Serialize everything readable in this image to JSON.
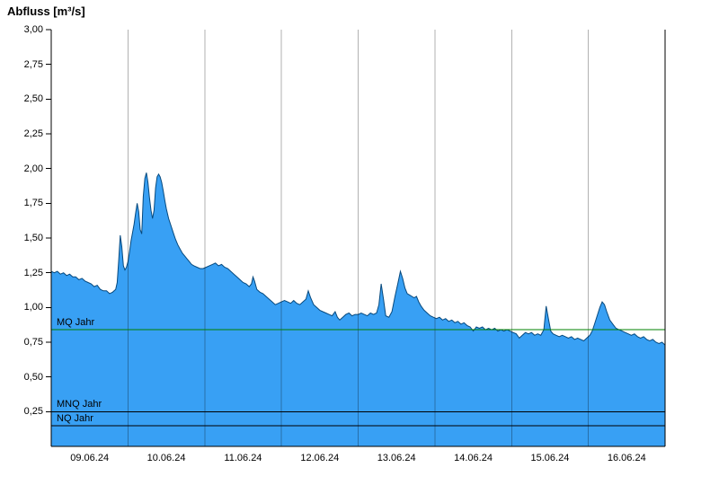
{
  "title": "Abfluss [m³/s]",
  "chart_data": {
    "type": "area",
    "title": "Abfluss [m³/s]",
    "ylabel": "Abfluss [m³/s]",
    "xlim": [
      0,
      8
    ],
    "ylim": [
      0,
      3
    ],
    "grid": "vertical-day-boundaries",
    "legend": "none",
    "x_ticks": [
      {
        "pos": 0.5,
        "label": "09.06.24"
      },
      {
        "pos": 1.5,
        "label": "10.06.24"
      },
      {
        "pos": 2.5,
        "label": "11.06.24"
      },
      {
        "pos": 3.5,
        "label": "12.06.24"
      },
      {
        "pos": 4.5,
        "label": "13.06.24"
      },
      {
        "pos": 5.5,
        "label": "14.06.24"
      },
      {
        "pos": 6.5,
        "label": "15.06.24"
      },
      {
        "pos": 7.5,
        "label": "16.06.24"
      }
    ],
    "y_ticks": [
      {
        "value": 0.25,
        "label": "0,25"
      },
      {
        "value": 0.5,
        "label": "0,50"
      },
      {
        "value": 0.75,
        "label": "0,75"
      },
      {
        "value": 1.0,
        "label": "1,00"
      },
      {
        "value": 1.25,
        "label": "1,25"
      },
      {
        "value": 1.5,
        "label": "1,50"
      },
      {
        "value": 1.75,
        "label": "1,75"
      },
      {
        "value": 2.0,
        "label": "2,00"
      },
      {
        "value": 2.25,
        "label": "2,25"
      },
      {
        "value": 2.5,
        "label": "2,50"
      },
      {
        "value": 2.75,
        "label": "2,75"
      },
      {
        "value": 3.0,
        "label": "3,00"
      }
    ],
    "reference_lines": [
      {
        "label": "MQ Jahr",
        "value": 0.84,
        "color": "#008000"
      },
      {
        "label": "MNQ Jahr",
        "value": 0.25,
        "color": "#000000"
      },
      {
        "label": "NQ Jahr",
        "value": 0.15,
        "color": "#000000"
      }
    ],
    "series": [
      {
        "name": "Abfluss",
        "unit": "m³/s",
        "fill": "#38a0f4",
        "stroke": "#06497e",
        "points": [
          [
            0.0,
            1.26
          ],
          [
            0.04,
            1.25
          ],
          [
            0.08,
            1.26
          ],
          [
            0.12,
            1.24
          ],
          [
            0.16,
            1.25
          ],
          [
            0.2,
            1.23
          ],
          [
            0.24,
            1.24
          ],
          [
            0.28,
            1.22
          ],
          [
            0.32,
            1.22
          ],
          [
            0.36,
            1.2
          ],
          [
            0.4,
            1.21
          ],
          [
            0.44,
            1.19
          ],
          [
            0.48,
            1.18
          ],
          [
            0.52,
            1.17
          ],
          [
            0.56,
            1.15
          ],
          [
            0.6,
            1.16
          ],
          [
            0.64,
            1.13
          ],
          [
            0.68,
            1.12
          ],
          [
            0.72,
            1.12
          ],
          [
            0.76,
            1.1
          ],
          [
            0.8,
            1.11
          ],
          [
            0.84,
            1.13
          ],
          [
            0.86,
            1.18
          ],
          [
            0.88,
            1.34
          ],
          [
            0.9,
            1.52
          ],
          [
            0.92,
            1.44
          ],
          [
            0.94,
            1.3
          ],
          [
            0.96,
            1.27
          ],
          [
            0.98,
            1.29
          ],
          [
            1.0,
            1.33
          ],
          [
            1.02,
            1.4
          ],
          [
            1.04,
            1.48
          ],
          [
            1.06,
            1.54
          ],
          [
            1.08,
            1.6
          ],
          [
            1.1,
            1.68
          ],
          [
            1.12,
            1.75
          ],
          [
            1.14,
            1.69
          ],
          [
            1.16,
            1.56
          ],
          [
            1.18,
            1.53
          ],
          [
            1.2,
            1.8
          ],
          [
            1.22,
            1.93
          ],
          [
            1.24,
            1.97
          ],
          [
            1.26,
            1.9
          ],
          [
            1.28,
            1.79
          ],
          [
            1.3,
            1.7
          ],
          [
            1.32,
            1.64
          ],
          [
            1.34,
            1.7
          ],
          [
            1.36,
            1.86
          ],
          [
            1.38,
            1.94
          ],
          [
            1.4,
            1.96
          ],
          [
            1.42,
            1.94
          ],
          [
            1.44,
            1.9
          ],
          [
            1.46,
            1.84
          ],
          [
            1.48,
            1.77
          ],
          [
            1.5,
            1.71
          ],
          [
            1.53,
            1.64
          ],
          [
            1.56,
            1.59
          ],
          [
            1.59,
            1.54
          ],
          [
            1.62,
            1.49
          ],
          [
            1.65,
            1.45
          ],
          [
            1.68,
            1.42
          ],
          [
            1.71,
            1.39
          ],
          [
            1.74,
            1.37
          ],
          [
            1.77,
            1.35
          ],
          [
            1.8,
            1.33
          ],
          [
            1.83,
            1.31
          ],
          [
            1.86,
            1.3
          ],
          [
            1.9,
            1.29
          ],
          [
            1.94,
            1.28
          ],
          [
            1.98,
            1.28
          ],
          [
            2.02,
            1.29
          ],
          [
            2.06,
            1.3
          ],
          [
            2.1,
            1.31
          ],
          [
            2.14,
            1.32
          ],
          [
            2.18,
            1.3
          ],
          [
            2.22,
            1.31
          ],
          [
            2.26,
            1.29
          ],
          [
            2.3,
            1.28
          ],
          [
            2.34,
            1.26
          ],
          [
            2.38,
            1.24
          ],
          [
            2.42,
            1.22
          ],
          [
            2.46,
            1.2
          ],
          [
            2.5,
            1.18
          ],
          [
            2.54,
            1.17
          ],
          [
            2.58,
            1.15
          ],
          [
            2.61,
            1.17
          ],
          [
            2.63,
            1.22
          ],
          [
            2.65,
            1.19
          ],
          [
            2.68,
            1.13
          ],
          [
            2.72,
            1.11
          ],
          [
            2.76,
            1.1
          ],
          [
            2.8,
            1.08
          ],
          [
            2.84,
            1.06
          ],
          [
            2.88,
            1.04
          ],
          [
            2.92,
            1.02
          ],
          [
            2.96,
            1.03
          ],
          [
            3.0,
            1.04
          ],
          [
            3.04,
            1.05
          ],
          [
            3.08,
            1.04
          ],
          [
            3.12,
            1.03
          ],
          [
            3.16,
            1.05
          ],
          [
            3.2,
            1.03
          ],
          [
            3.24,
            1.02
          ],
          [
            3.28,
            1.04
          ],
          [
            3.32,
            1.06
          ],
          [
            3.35,
            1.12
          ],
          [
            3.38,
            1.07
          ],
          [
            3.42,
            1.02
          ],
          [
            3.46,
            1.0
          ],
          [
            3.5,
            0.98
          ],
          [
            3.54,
            0.97
          ],
          [
            3.58,
            0.96
          ],
          [
            3.62,
            0.95
          ],
          [
            3.66,
            0.94
          ],
          [
            3.7,
            0.97
          ],
          [
            3.73,
            0.93
          ],
          [
            3.76,
            0.91
          ],
          [
            3.8,
            0.93
          ],
          [
            3.84,
            0.95
          ],
          [
            3.88,
            0.96
          ],
          [
            3.92,
            0.94
          ],
          [
            3.96,
            0.95
          ],
          [
            4.0,
            0.95
          ],
          [
            4.04,
            0.96
          ],
          [
            4.08,
            0.95
          ],
          [
            4.12,
            0.94
          ],
          [
            4.16,
            0.96
          ],
          [
            4.2,
            0.95
          ],
          [
            4.24,
            0.96
          ],
          [
            4.27,
            1.02
          ],
          [
            4.3,
            1.17
          ],
          [
            4.33,
            1.06
          ],
          [
            4.36,
            0.94
          ],
          [
            4.4,
            0.93
          ],
          [
            4.44,
            0.97
          ],
          [
            4.48,
            1.08
          ],
          [
            4.52,
            1.18
          ],
          [
            4.55,
            1.26
          ],
          [
            4.58,
            1.21
          ],
          [
            4.61,
            1.14
          ],
          [
            4.64,
            1.1
          ],
          [
            4.67,
            1.09
          ],
          [
            4.7,
            1.08
          ],
          [
            4.73,
            1.07
          ],
          [
            4.76,
            1.08
          ],
          [
            4.79,
            1.04
          ],
          [
            4.82,
            1.01
          ],
          [
            4.86,
            0.98
          ],
          [
            4.9,
            0.96
          ],
          [
            4.94,
            0.94
          ],
          [
            4.98,
            0.93
          ],
          [
            5.02,
            0.92
          ],
          [
            5.06,
            0.93
          ],
          [
            5.1,
            0.91
          ],
          [
            5.14,
            0.92
          ],
          [
            5.18,
            0.9
          ],
          [
            5.22,
            0.91
          ],
          [
            5.26,
            0.89
          ],
          [
            5.3,
            0.9
          ],
          [
            5.34,
            0.88
          ],
          [
            5.38,
            0.89
          ],
          [
            5.42,
            0.87
          ],
          [
            5.46,
            0.86
          ],
          [
            5.5,
            0.83
          ],
          [
            5.54,
            0.86
          ],
          [
            5.58,
            0.85
          ],
          [
            5.62,
            0.86
          ],
          [
            5.66,
            0.84
          ],
          [
            5.7,
            0.85
          ],
          [
            5.74,
            0.84
          ],
          [
            5.78,
            0.85
          ],
          [
            5.82,
            0.83
          ],
          [
            5.86,
            0.84
          ],
          [
            5.9,
            0.83
          ],
          [
            5.94,
            0.84
          ],
          [
            5.98,
            0.83
          ],
          [
            6.02,
            0.82
          ],
          [
            6.06,
            0.81
          ],
          [
            6.1,
            0.78
          ],
          [
            6.14,
            0.8
          ],
          [
            6.18,
            0.82
          ],
          [
            6.22,
            0.81
          ],
          [
            6.26,
            0.82
          ],
          [
            6.3,
            0.8
          ],
          [
            6.34,
            0.81
          ],
          [
            6.38,
            0.8
          ],
          [
            6.42,
            0.84
          ],
          [
            6.45,
            1.01
          ],
          [
            6.48,
            0.92
          ],
          [
            6.51,
            0.83
          ],
          [
            6.54,
            0.81
          ],
          [
            6.58,
            0.8
          ],
          [
            6.62,
            0.79
          ],
          [
            6.66,
            0.8
          ],
          [
            6.7,
            0.79
          ],
          [
            6.74,
            0.78
          ],
          [
            6.78,
            0.79
          ],
          [
            6.82,
            0.77
          ],
          [
            6.86,
            0.78
          ],
          [
            6.9,
            0.77
          ],
          [
            6.94,
            0.76
          ],
          [
            6.98,
            0.78
          ],
          [
            7.02,
            0.8
          ],
          [
            7.05,
            0.83
          ],
          [
            7.08,
            0.88
          ],
          [
            7.12,
            0.95
          ],
          [
            7.15,
            1.0
          ],
          [
            7.18,
            1.04
          ],
          [
            7.21,
            1.02
          ],
          [
            7.24,
            0.97
          ],
          [
            7.28,
            0.91
          ],
          [
            7.32,
            0.88
          ],
          [
            7.36,
            0.85
          ],
          [
            7.4,
            0.84
          ],
          [
            7.44,
            0.83
          ],
          [
            7.48,
            0.82
          ],
          [
            7.52,
            0.81
          ],
          [
            7.56,
            0.8
          ],
          [
            7.6,
            0.81
          ],
          [
            7.64,
            0.79
          ],
          [
            7.68,
            0.78
          ],
          [
            7.72,
            0.79
          ],
          [
            7.76,
            0.77
          ],
          [
            7.8,
            0.76
          ],
          [
            7.84,
            0.77
          ],
          [
            7.88,
            0.75
          ],
          [
            7.92,
            0.74
          ],
          [
            7.96,
            0.75
          ],
          [
            8.0,
            0.73
          ]
        ]
      }
    ],
    "colors": {
      "area_fill": "#38a0f4",
      "area_stroke": "#06497e",
      "gridline": "rgba(0,0,0,0.3)",
      "axis": "#000000",
      "mq_line": "#008000"
    }
  }
}
